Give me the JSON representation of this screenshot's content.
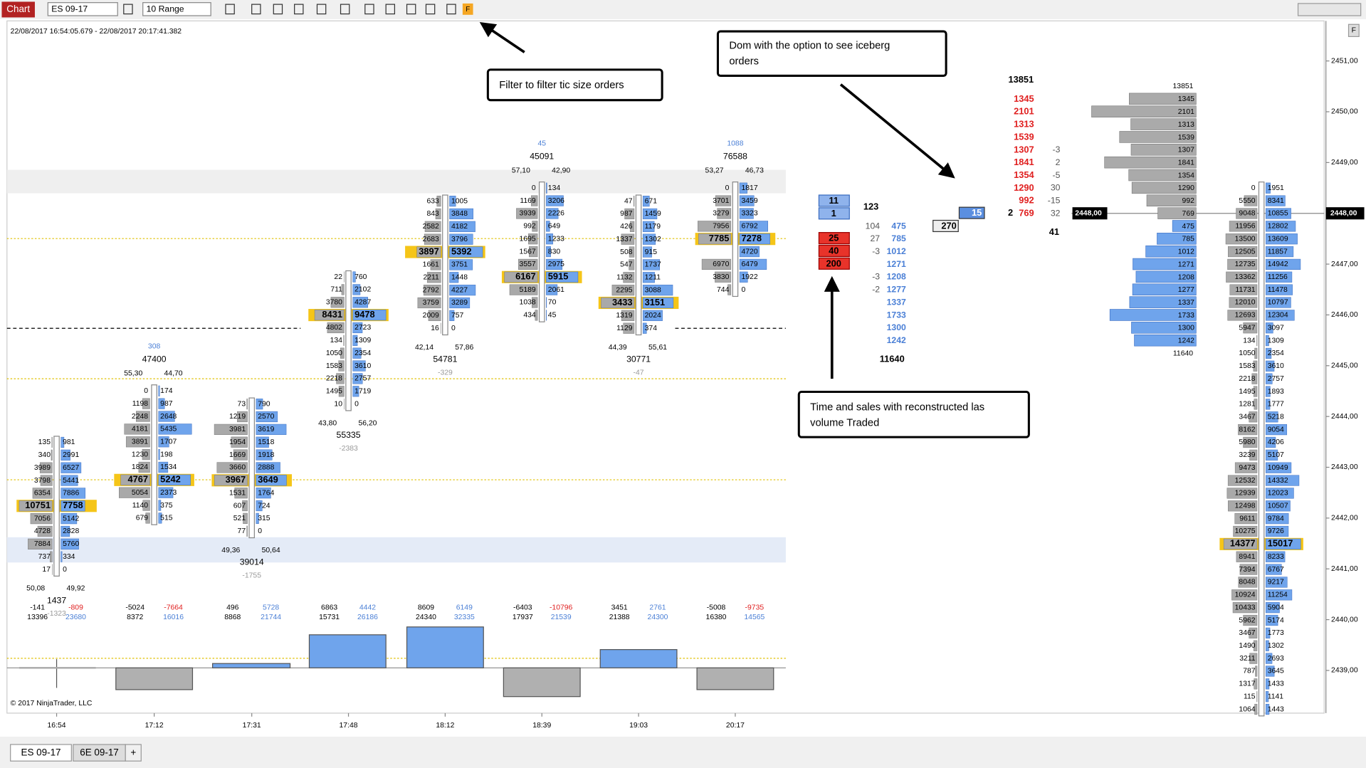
{
  "toolbar": {
    "chart_button": "Chart",
    "instrument": "ES 09-17",
    "period": "10 Range",
    "filter_button": "F"
  },
  "date_range": "22/08/2017 16:54:05.679 - 22/08/2017 20:17:41.382",
  "panel_button": "F",
  "annotations": {
    "filter": "Filter to filter tic size orders",
    "dom": [
      "Dom with the option to see iceberg",
      "orders"
    ],
    "time_and_sales": [
      "Time and sales with reconstructed las",
      "volume Traded"
    ]
  },
  "price_axis": [
    "2451,00",
    "2450,00",
    "2449,00",
    "2448,00",
    "2447,00",
    "2446,00",
    "2445,00",
    "2444,00",
    "2443,00",
    "2442,00",
    "2441,00",
    "2440,00",
    "2439,00"
  ],
  "current_price": "2448,00",
  "time_axis": [
    "16:54",
    "17:12",
    "17:31",
    "17:48",
    "18:12",
    "18:39",
    "19:03",
    "20:17"
  ],
  "copyright": "© 2017 NinjaTrader, LLC",
  "tabs": [
    "ES 09-17",
    "6E 09-17",
    "+"
  ],
  "footprint": [
    {
      "bid": [
        135,
        340,
        3989,
        3798,
        6354,
        10751,
        7056,
        4728,
        7884,
        737,
        17
      ],
      "ask": [
        981,
        2991,
        6527,
        5441,
        7886,
        7758,
        5142,
        2828,
        5760,
        334,
        0
      ],
      "pct": [
        "50,08",
        "49,92"
      ],
      "total": 1437,
      "delta": -1323
    },
    {
      "bid": [
        0,
        1198,
        2248,
        4181,
        3891,
        1230,
        1824,
        4767,
        5054,
        1140,
        679
      ],
      "ask": [
        174,
        987,
        2648,
        5435,
        1707,
        198,
        1534,
        5242,
        2373,
        375,
        515
      ],
      "pct": [
        "55,30",
        "44,70"
      ],
      "total": 47400,
      "delta": 308
    },
    {
      "bid": [
        73,
        1219,
        3981,
        1954,
        1669,
        3660,
        3967,
        1531,
        607,
        521,
        77
      ],
      "ask": [
        790,
        2570,
        3619,
        1518,
        1918,
        2888,
        3649,
        1764,
        724,
        315,
        0
      ],
      "pct": [
        "49,36",
        "50,64"
      ],
      "total": 39014,
      "delta": -1755
    },
    {
      "bid": [
        22,
        711,
        3780,
        8431,
        4802,
        134,
        1050,
        1583,
        2218,
        1495,
        10
      ],
      "ask": [
        760,
        2102,
        4287,
        9478,
        2723,
        1309,
        2354,
        3610,
        2757,
        1719,
        0
      ],
      "pct": [
        "43,80",
        "56,20"
      ],
      "total": 55335,
      "delta": -2383
    },
    {
      "bid": [
        633,
        843,
        2582,
        2683,
        3897,
        1661,
        2211,
        2792,
        3759,
        2009,
        16
      ],
      "ask": [
        1005,
        3848,
        4182,
        3796,
        5392,
        3751,
        1448,
        4227,
        3289,
        757,
        0
      ],
      "pct": [
        "42,14",
        "57,86"
      ],
      "total": 54781,
      "delta": -329
    },
    {
      "bid": [
        0,
        1169,
        3939,
        992,
        1695,
        1567,
        3557,
        6167,
        5189,
        1038,
        434
      ],
      "ask": [
        134,
        3206,
        2226,
        649,
        1233,
        830,
        2975,
        5915,
        2061,
        70,
        45
      ],
      "pct": [
        "57,10",
        "42,90"
      ],
      "total": 45091,
      "delta": 45
    },
    {
      "bid": [
        47,
        987,
        426,
        1337,
        508,
        547,
        1132,
        2295,
        3433,
        1319,
        1129
      ],
      "ask": [
        671,
        1459,
        1179,
        1302,
        915,
        1737,
        1211,
        3088,
        3151,
        2024,
        374
      ],
      "pct": [
        "44,39",
        "55,61"
      ],
      "total": 30771,
      "delta": -47
    },
    {
      "bid": [
        0,
        3701,
        3279,
        7956,
        7785,
        null,
        6970,
        3830,
        744
      ],
      "ask": [
        1817,
        3459,
        3323,
        6792,
        7278,
        4720,
        6479,
        1922,
        0
      ],
      "pct": [
        "53,27",
        "46,73"
      ],
      "total": 76588,
      "delta": 1088
    }
  ],
  "bar_stats": [
    {
      "delta": -141,
      "cum_delta": -809,
      "volume": 13396,
      "cum_volume": 23680
    },
    {
      "delta": -5024,
      "cum_delta": -7664,
      "volume": 8372,
      "cum_volume": 16016
    },
    {
      "delta": 496,
      "cum_delta": 5728,
      "volume": 8868,
      "cum_volume": 21744
    },
    {
      "delta": 6863,
      "cum_delta": 4442,
      "volume": 15731,
      "cum_volume": 26186
    },
    {
      "delta": 8609,
      "cum_delta": 6149,
      "volume": 24340,
      "cum_volume": 32335
    },
    {
      "delta": -6403,
      "cum_delta": -10796,
      "volume": 17937,
      "cum_volume": 21539
    },
    {
      "delta": 3451,
      "cum_delta": 2761,
      "volume": 21388,
      "cum_volume": 24300
    },
    {
      "delta": -5008,
      "cum_delta": -9735,
      "volume": 16380,
      "cum_volume": 14565
    }
  ],
  "dom": {
    "bid_boxes": [
      11,
      1
    ],
    "ask_boxes": [
      25,
      40,
      200
    ],
    "summary": 123,
    "rows": [
      [
        104,
        475
      ],
      [
        27,
        785
      ],
      [
        -3,
        1012
      ],
      [
        null,
        1271
      ],
      [
        -3,
        1208
      ],
      [
        -2,
        1277
      ],
      [
        null,
        1337
      ],
      [
        null,
        1733
      ],
      [
        null,
        1300
      ],
      [
        null,
        1242
      ]
    ],
    "total": 11640,
    "iceberg_ask": 15,
    "iceberg_bid": 270
  },
  "time_and_sales": {
    "total": 13851,
    "rows": [
      [
        1345,
        null
      ],
      [
        2101,
        null
      ],
      [
        1313,
        null
      ],
      [
        1539,
        null
      ],
      [
        1307,
        -3
      ],
      [
        1841,
        2
      ],
      [
        1354,
        -5
      ],
      [
        1290,
        30
      ],
      [
        992,
        -15
      ],
      [
        769,
        32
      ]
    ],
    "last_prefix": 2,
    "count": 41
  },
  "profile": {
    "top": 13851,
    "asks": [
      1345,
      2101,
      1313,
      1539,
      1307,
      1841,
      1354,
      1290,
      992,
      769
    ],
    "bids": [
      475,
      785,
      1012,
      1271,
      1208,
      1277,
      1337,
      1733,
      1300,
      1242
    ],
    "bottom": 11640
  },
  "session_profile": {
    "bid": [
      0,
      5550,
      9048,
      11956,
      13500,
      12505,
      12735,
      13362,
      11731,
      12010,
      12693,
      5947,
      134,
      1050,
      1583,
      2218,
      1495,
      1281,
      3467,
      8162,
      5980,
      3239,
      9473,
      12532,
      12939,
      12498,
      9611,
      10275,
      14377,
      8941,
      7394,
      8048,
      10924,
      10433,
      5962,
      3467,
      1490,
      3211,
      787,
      1317,
      115,
      1064
    ],
    "ask": [
      1951,
      8341,
      10855,
      12802,
      13609,
      11857,
      14942,
      11256,
      11478,
      10797,
      12304,
      3097,
      1309,
      2354,
      3610,
      2757,
      1893,
      1777,
      5218,
      9054,
      4206,
      5107,
      10949,
      14332,
      12023,
      10507,
      9784,
      9726,
      15017,
      8233,
      6767,
      9217,
      11254,
      5904,
      5174,
      1773,
      1302,
      2693,
      3645,
      1433,
      1141,
      1443
    ]
  }
}
